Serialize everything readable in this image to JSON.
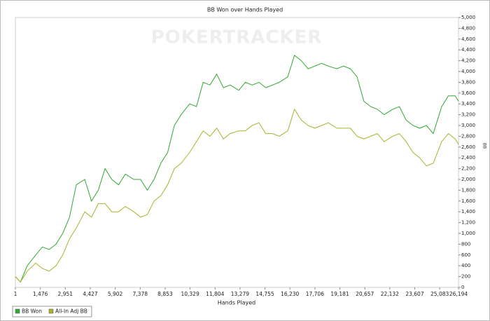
{
  "chart_data": {
    "type": "line",
    "title": "BB Won over Hands Played",
    "x_label": "Hands Played",
    "y_label": "BB",
    "watermark": "POKERTRACKER",
    "x": [
      1,
      300,
      700,
      1200,
      1600,
      2000,
      2400,
      2800,
      3200,
      3600,
      4100,
      4500,
      4900,
      5300,
      5700,
      6100,
      6500,
      7000,
      7400,
      7800,
      8200,
      8600,
      9000,
      9400,
      9800,
      10300,
      10700,
      11100,
      11500,
      11900,
      12300,
      12700,
      13200,
      13600,
      14000,
      14400,
      14800,
      15200,
      15600,
      16100,
      16500,
      16900,
      17300,
      17700,
      18100,
      18500,
      19000,
      19400,
      19800,
      20200,
      20600,
      21000,
      21400,
      21800,
      22300,
      22700,
      23100,
      23500,
      23900,
      24300,
      24700,
      25200,
      25600,
      26000,
      26194
    ],
    "series": [
      {
        "name": "BB Won",
        "color": "#33a833",
        "values": [
          200,
          100,
          400,
          600,
          750,
          700,
          800,
          1000,
          1300,
          1900,
          2000,
          1600,
          1800,
          2200,
          2000,
          1900,
          2100,
          2000,
          2000,
          1800,
          2000,
          2300,
          2500,
          3000,
          3200,
          3400,
          3350,
          3800,
          3750,
          3950,
          3700,
          3750,
          3650,
          3800,
          3750,
          3800,
          3700,
          3750,
          3800,
          3900,
          4300,
          4200,
          4050,
          4100,
          4150,
          4100,
          4050,
          4100,
          4050,
          3900,
          3450,
          3350,
          3300,
          3200,
          3300,
          3350,
          3100,
          3000,
          2950,
          3000,
          2850,
          3350,
          3550,
          3550,
          3450
        ]
      },
      {
        "name": "All-In Adj BB",
        "color": "#aab22c",
        "values": [
          200,
          100,
          300,
          450,
          350,
          300,
          400,
          600,
          900,
          1100,
          1400,
          1300,
          1550,
          1550,
          1400,
          1400,
          1500,
          1400,
          1300,
          1350,
          1600,
          1700,
          1900,
          2200,
          2300,
          2500,
          2700,
          2900,
          2800,
          2950,
          2750,
          2850,
          2900,
          2900,
          3000,
          3050,
          2850,
          2850,
          2800,
          2900,
          3300,
          3100,
          3000,
          2950,
          3000,
          3050,
          2950,
          2950,
          2950,
          2800,
          2750,
          2800,
          2850,
          2700,
          2800,
          2850,
          2700,
          2500,
          2400,
          2250,
          2300,
          2700,
          2850,
          2750,
          2650
        ]
      }
    ],
    "xlim": [
      1,
      26194
    ],
    "xticks": [
      1,
      {
        "value": 1476,
        "label": "1,476"
      },
      {
        "value": 2951,
        "label": "2,951"
      },
      {
        "value": 4427,
        "label": "4,427"
      },
      {
        "value": 5902,
        "label": "5,902"
      },
      {
        "value": 7378,
        "label": "7,378"
      },
      {
        "value": 8853,
        "label": "8,853"
      },
      {
        "value": 10329,
        "label": "10,329"
      },
      {
        "value": 11804,
        "label": "11,804"
      },
      {
        "value": 13279,
        "label": "13,279"
      },
      {
        "value": 14755,
        "label": "14,755"
      },
      {
        "value": 16230,
        "label": "16,230"
      },
      {
        "value": 17706,
        "label": "17,706"
      },
      {
        "value": 19181,
        "label": "19,181"
      },
      {
        "value": 20657,
        "label": "20,657"
      },
      {
        "value": 22132,
        "label": "22,132"
      },
      {
        "value": 23607,
        "label": "23,607"
      },
      {
        "value": 25083,
        "label": "25,083"
      },
      {
        "value": 26194,
        "label": "26,194"
      }
    ],
    "ylim": [
      0,
      5000
    ],
    "yticks": [
      0,
      200,
      400,
      600,
      800,
      {
        "value": 1000,
        "label": "1,000"
      },
      {
        "value": 1200,
        "label": "1,200"
      },
      {
        "value": 1400,
        "label": "1,400"
      },
      {
        "value": 1600,
        "label": "1,600"
      },
      {
        "value": 1800,
        "label": "1,800"
      },
      {
        "value": 2000,
        "label": "2,000"
      },
      {
        "value": 2200,
        "label": "2,200"
      },
      {
        "value": 2400,
        "label": "2,400"
      },
      {
        "value": 2600,
        "label": "2,600"
      },
      {
        "value": 2800,
        "label": "2,800"
      },
      {
        "value": 3000,
        "label": "3,000"
      },
      {
        "value": 3200,
        "label": "3,200"
      },
      {
        "value": 3400,
        "label": "3,400"
      },
      {
        "value": 3600,
        "label": "3,600"
      },
      {
        "value": 3800,
        "label": "3,800"
      },
      {
        "value": 4000,
        "label": "4,000"
      },
      {
        "value": 4200,
        "label": "4,200"
      },
      {
        "value": 4400,
        "label": "4,400"
      },
      {
        "value": 4600,
        "label": "4,600"
      },
      {
        "value": 4800,
        "label": "4,800"
      },
      {
        "value": 5000,
        "label": "5,000"
      }
    ],
    "y_axis_side": "right",
    "grid": false,
    "legend": "bottom-left"
  }
}
